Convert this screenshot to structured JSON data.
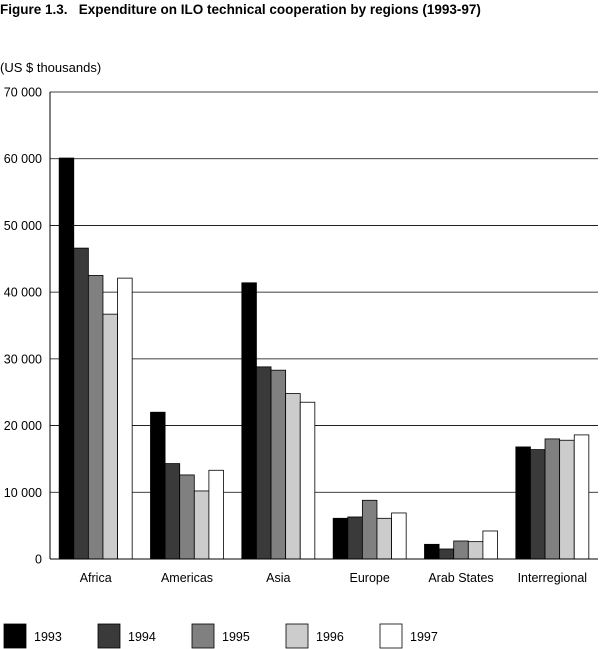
{
  "figure": {
    "label": "Figure 1.3.",
    "title": "Expenditure on ILO technical cooperation by regions (1993-97)"
  },
  "chart_data": {
    "type": "bar",
    "ylabel": "(US $ thousands)",
    "xlabel": "",
    "ylim": [
      0,
      70000
    ],
    "y_ticks": [
      0,
      10000,
      20000,
      30000,
      40000,
      50000,
      60000,
      70000
    ],
    "y_tick_labels": [
      "0",
      "10 000",
      "20 000",
      "30 000",
      "40 000",
      "50 000",
      "60 000",
      "70 000"
    ],
    "grid": true,
    "legend_position": "bottom",
    "categories": [
      "Africa",
      "Americas",
      "Asia",
      "Europe",
      "Arab States",
      "Interregional"
    ],
    "series": [
      {
        "name": "1993",
        "color": "#000000",
        "values": [
          60100,
          22000,
          41400,
          6100,
          2200,
          16800
        ]
      },
      {
        "name": "1994",
        "color": "#3a3a3a",
        "values": [
          46600,
          14300,
          28800,
          6300,
          1500,
          16400
        ]
      },
      {
        "name": "1995",
        "color": "#808080",
        "values": [
          42500,
          12600,
          28300,
          8800,
          2700,
          18000
        ]
      },
      {
        "name": "1996",
        "color": "#cccccc",
        "values": [
          36700,
          10200,
          24800,
          6100,
          2600,
          17800
        ]
      },
      {
        "name": "1997",
        "color": "#ffffff",
        "values": [
          42100,
          13300,
          23500,
          6900,
          4200,
          18600
        ]
      }
    ]
  }
}
